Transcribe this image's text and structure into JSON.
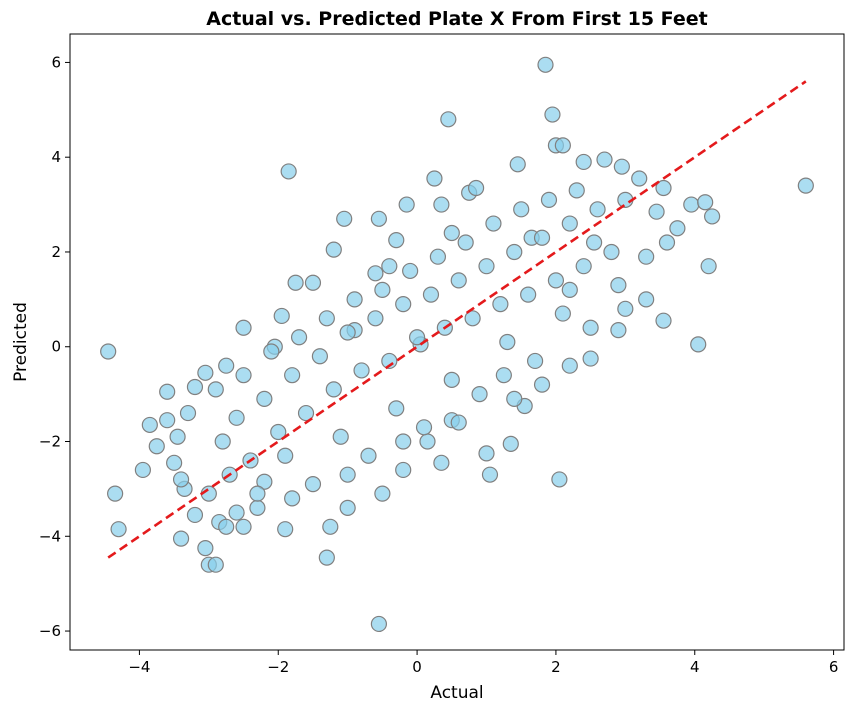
{
  "chart_data": {
    "type": "scatter",
    "title": "Actual vs. Predicted Plate X From First 15 Feet",
    "xlabel": "Actual",
    "ylabel": "Predicted",
    "xlim": [
      -5.0,
      6.15
    ],
    "ylim": [
      -6.4,
      6.6
    ],
    "xticks": [
      -4,
      -2,
      0,
      2,
      4,
      6
    ],
    "yticks": [
      -6,
      -4,
      -2,
      0,
      2,
      4,
      6
    ],
    "xtick_labels": [
      "−4",
      "−2",
      "0",
      "2",
      "4",
      "6"
    ],
    "ytick_labels": [
      "−6",
      "−4",
      "−2",
      "0",
      "2",
      "4",
      "6"
    ],
    "grid": false,
    "legend": "none",
    "point_color": "#87CEEB",
    "point_edge_color": "#808080",
    "reference_line": {
      "style": "dashed",
      "color": "#e41a1c",
      "x": [
        -4.45,
        5.6
      ],
      "y": [
        -4.45,
        5.6
      ]
    },
    "series": [
      {
        "points": [
          [
            -4.45,
            -0.1
          ],
          [
            -4.35,
            -3.1
          ],
          [
            -4.3,
            -3.85
          ],
          [
            -3.95,
            -2.6
          ],
          [
            -3.85,
            -1.65
          ],
          [
            -3.75,
            -2.1
          ],
          [
            -3.6,
            -1.55
          ],
          [
            -3.6,
            -0.95
          ],
          [
            -3.5,
            -2.45
          ],
          [
            -3.45,
            -1.9
          ],
          [
            -3.4,
            -4.05
          ],
          [
            -3.35,
            -3.0
          ],
          [
            -3.2,
            -0.85
          ],
          [
            -3.2,
            -3.55
          ],
          [
            -3.05,
            -4.25
          ],
          [
            -3.0,
            -4.6
          ],
          [
            -2.9,
            -4.6
          ],
          [
            -3.05,
            -0.55
          ],
          [
            -2.85,
            -3.7
          ],
          [
            -2.75,
            -3.8
          ],
          [
            -2.75,
            -0.4
          ],
          [
            -2.5,
            -3.8
          ],
          [
            -2.5,
            0.4
          ],
          [
            -2.3,
            -3.4
          ],
          [
            -2.2,
            -2.85
          ],
          [
            -2.05,
            0.0
          ],
          [
            -1.95,
            0.65
          ],
          [
            -1.85,
            3.7
          ],
          [
            -1.9,
            -3.85
          ],
          [
            -1.75,
            1.35
          ],
          [
            -1.5,
            1.35
          ],
          [
            -1.25,
            -3.8
          ],
          [
            -1.3,
            -4.45
          ],
          [
            -1.2,
            2.05
          ],
          [
            -1.05,
            2.7
          ],
          [
            -1.0,
            -3.4
          ],
          [
            -0.9,
            0.35
          ],
          [
            -0.6,
            1.55
          ],
          [
            -0.55,
            2.7
          ],
          [
            -0.55,
            -5.85
          ],
          [
            -0.5,
            -3.1
          ],
          [
            -0.4,
            1.7
          ],
          [
            -0.3,
            2.25
          ],
          [
            -0.2,
            -2.6
          ],
          [
            -0.15,
            3.0
          ],
          [
            0.05,
            0.05
          ],
          [
            0.15,
            -2.0
          ],
          [
            0.25,
            3.55
          ],
          [
            0.35,
            -2.45
          ],
          [
            0.35,
            3.0
          ],
          [
            0.45,
            4.8
          ],
          [
            0.5,
            2.4
          ],
          [
            0.5,
            -1.55
          ],
          [
            0.75,
            3.25
          ],
          [
            0.85,
            3.35
          ],
          [
            1.0,
            -2.25
          ],
          [
            1.05,
            -2.7
          ],
          [
            1.25,
            -0.6
          ],
          [
            1.35,
            -2.05
          ],
          [
            1.45,
            3.85
          ],
          [
            1.55,
            -1.25
          ],
          [
            1.65,
            2.3
          ],
          [
            1.8,
            -0.8
          ],
          [
            1.85,
            5.95
          ],
          [
            1.95,
            4.9
          ],
          [
            2.0,
            4.25
          ],
          [
            2.05,
            -2.8
          ],
          [
            2.1,
            4.25
          ],
          [
            2.2,
            1.2
          ],
          [
            2.4,
            3.9
          ],
          [
            2.5,
            -0.25
          ],
          [
            2.55,
            2.2
          ],
          [
            2.7,
            3.95
          ],
          [
            2.9,
            0.35
          ],
          [
            2.95,
            3.8
          ],
          [
            3.2,
            3.55
          ],
          [
            3.3,
            1.0
          ],
          [
            3.45,
            2.85
          ],
          [
            3.55,
            3.35
          ],
          [
            3.55,
            0.55
          ],
          [
            3.75,
            2.5
          ],
          [
            3.95,
            3.0
          ],
          [
            4.05,
            0.05
          ],
          [
            4.15,
            3.05
          ],
          [
            4.2,
            1.7
          ],
          [
            4.25,
            2.75
          ],
          [
            5.6,
            3.4
          ],
          [
            -2.8,
            -2.0
          ],
          [
            -2.6,
            -1.5
          ],
          [
            -2.4,
            -2.4
          ],
          [
            -2.2,
            -1.1
          ],
          [
            -2.0,
            -1.8
          ],
          [
            -1.8,
            -0.6
          ],
          [
            -1.6,
            -1.4
          ],
          [
            -1.4,
            -0.2
          ],
          [
            -1.2,
            -0.9
          ],
          [
            -1.0,
            0.3
          ],
          [
            -0.8,
            -0.5
          ],
          [
            -0.6,
            0.6
          ],
          [
            -0.4,
            -0.3
          ],
          [
            -0.2,
            0.9
          ],
          [
            0.0,
            0.2
          ],
          [
            0.2,
            1.1
          ],
          [
            0.4,
            0.4
          ],
          [
            0.6,
            1.4
          ],
          [
            0.8,
            0.6
          ],
          [
            1.0,
            1.7
          ],
          [
            1.2,
            0.9
          ],
          [
            1.4,
            2.0
          ],
          [
            1.6,
            1.1
          ],
          [
            1.8,
            2.3
          ],
          [
            2.0,
            1.4
          ],
          [
            2.2,
            2.6
          ],
          [
            2.4,
            1.7
          ],
          [
            2.6,
            2.9
          ],
          [
            2.8,
            2.0
          ],
          [
            3.0,
            3.1
          ],
          [
            -3.0,
            -3.1
          ],
          [
            -2.7,
            -2.7
          ],
          [
            -2.3,
            -3.1
          ],
          [
            -1.9,
            -2.3
          ],
          [
            -1.5,
            -2.9
          ],
          [
            -1.1,
            -1.9
          ],
          [
            -0.7,
            -2.3
          ],
          [
            -0.3,
            -1.3
          ],
          [
            0.1,
            -1.7
          ],
          [
            0.5,
            -0.7
          ],
          [
            0.9,
            -1.0
          ],
          [
            1.3,
            0.1
          ],
          [
            1.7,
            -0.3
          ],
          [
            2.1,
            0.7
          ],
          [
            2.5,
            0.4
          ],
          [
            2.9,
            1.3
          ],
          [
            3.3,
            1.9
          ],
          [
            3.6,
            2.2
          ],
          [
            -3.3,
            -1.4
          ],
          [
            -2.9,
            -0.9
          ],
          [
            -2.5,
            -0.6
          ],
          [
            -2.1,
            -0.1
          ],
          [
            -1.7,
            0.2
          ],
          [
            -1.3,
            0.6
          ],
          [
            -0.9,
            1.0
          ],
          [
            -0.5,
            1.2
          ],
          [
            -0.1,
            1.6
          ],
          [
            0.3,
            1.9
          ],
          [
            0.7,
            2.2
          ],
          [
            1.1,
            2.6
          ],
          [
            1.5,
            2.9
          ],
          [
            1.9,
            3.1
          ],
          [
            2.3,
            3.3
          ],
          [
            -3.4,
            -2.8
          ],
          [
            -2.6,
            -3.5
          ],
          [
            -1.8,
            -3.2
          ],
          [
            -1.0,
            -2.7
          ],
          [
            -0.2,
            -2.0
          ],
          [
            0.6,
            -1.6
          ],
          [
            1.4,
            -1.1
          ],
          [
            2.2,
            -0.4
          ],
          [
            3.0,
            0.8
          ]
        ]
      }
    ]
  }
}
